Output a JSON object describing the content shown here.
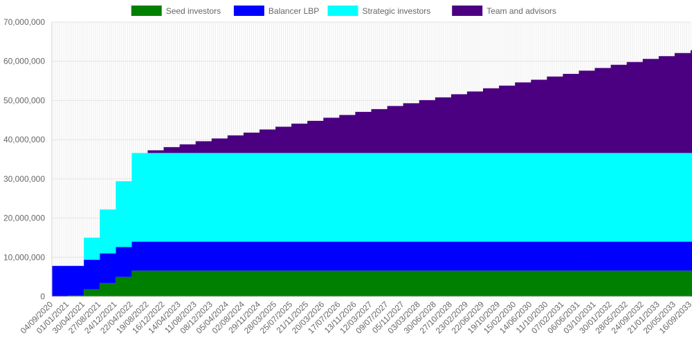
{
  "chart_data": {
    "type": "area",
    "stacked": true,
    "step": true,
    "legend_position": "top",
    "grid": true,
    "ylim": [
      0,
      70000000
    ],
    "y_ticks": [
      0,
      10000000,
      20000000,
      30000000,
      40000000,
      50000000,
      60000000,
      70000000
    ],
    "x_tick_labels": [
      "04/09/2020",
      "01/01/2021",
      "30/04/2021",
      "27/08/2021",
      "24/12/2021",
      "22/04/2022",
      "19/08/2022",
      "16/12/2022",
      "14/04/2023",
      "11/08/2023",
      "08/12/2023",
      "05/04/2024",
      "02/08/2024",
      "29/11/2024",
      "28/03/2025",
      "25/07/2025",
      "21/11/2025",
      "20/03/2026",
      "17/07/2026",
      "13/11/2026",
      "12/03/2027",
      "09/07/2027",
      "05/11/2027",
      "03/03/2028",
      "30/06/2028",
      "27/10/2028",
      "23/02/2029",
      "22/06/2029",
      "19/10/2029",
      "15/02/2030",
      "14/06/2030",
      "11/10/2030",
      "07/02/2031",
      "06/06/2031",
      "03/10/2031",
      "30/01/2032",
      "28/05/2032",
      "24/09/2032",
      "21/01/2033",
      "20/05/2033",
      "16/09/2033"
    ],
    "series": [
      {
        "name": "Seed investors",
        "color": "#008000",
        "values": [
          0,
          200000,
          1800000,
          3400000,
          5000000,
          6600000,
          6600000,
          6600000,
          6600000,
          6600000,
          6600000,
          6600000,
          6600000,
          6600000,
          6600000,
          6600000,
          6600000,
          6600000,
          6600000,
          6600000,
          6600000,
          6600000,
          6600000,
          6600000,
          6600000,
          6600000,
          6600000,
          6600000,
          6600000,
          6600000,
          6600000,
          6600000,
          6600000,
          6600000,
          6600000,
          6600000,
          6600000,
          6600000,
          6600000,
          6600000,
          6600000
        ]
      },
      {
        "name": "Balancer LBP",
        "color": "#0000ff",
        "values": [
          7800000,
          7600000,
          7600000,
          7600000,
          7600000,
          7400000,
          7400000,
          7400000,
          7400000,
          7400000,
          7400000,
          7400000,
          7400000,
          7400000,
          7400000,
          7400000,
          7400000,
          7400000,
          7400000,
          7400000,
          7400000,
          7400000,
          7400000,
          7400000,
          7400000,
          7400000,
          7400000,
          7400000,
          7400000,
          7400000,
          7400000,
          7400000,
          7400000,
          7400000,
          7400000,
          7400000,
          7400000,
          7400000,
          7400000,
          7400000,
          7400000
        ]
      },
      {
        "name": "Strategic investors",
        "color": "#00ffff",
        "values": [
          0,
          0,
          5600000,
          11200000,
          16800000,
          22600000,
          22600000,
          22600000,
          22600000,
          22600000,
          22600000,
          22600000,
          22600000,
          22600000,
          22600000,
          22600000,
          22600000,
          22600000,
          22600000,
          22600000,
          22600000,
          22600000,
          22600000,
          22600000,
          22600000,
          22600000,
          22600000,
          22600000,
          22600000,
          22600000,
          22600000,
          22600000,
          22600000,
          22600000,
          22600000,
          22600000,
          22600000,
          22600000,
          22600000,
          22600000,
          22600000
        ]
      },
      {
        "name": "Team and advisors",
        "color": "#4b0082",
        "values": [
          0,
          0,
          0,
          0,
          0,
          0,
          700000,
          1500000,
          2200000,
          3000000,
          3700000,
          4500000,
          5200000,
          6000000,
          6700000,
          7500000,
          8200000,
          9000000,
          9700000,
          10500000,
          11200000,
          12000000,
          12700000,
          13500000,
          14200000,
          15000000,
          15700000,
          16500000,
          17200000,
          18000000,
          18700000,
          19500000,
          20200000,
          21000000,
          21700000,
          22500000,
          23200000,
          24000000,
          24700000,
          25500000,
          26200000
        ]
      }
    ]
  }
}
